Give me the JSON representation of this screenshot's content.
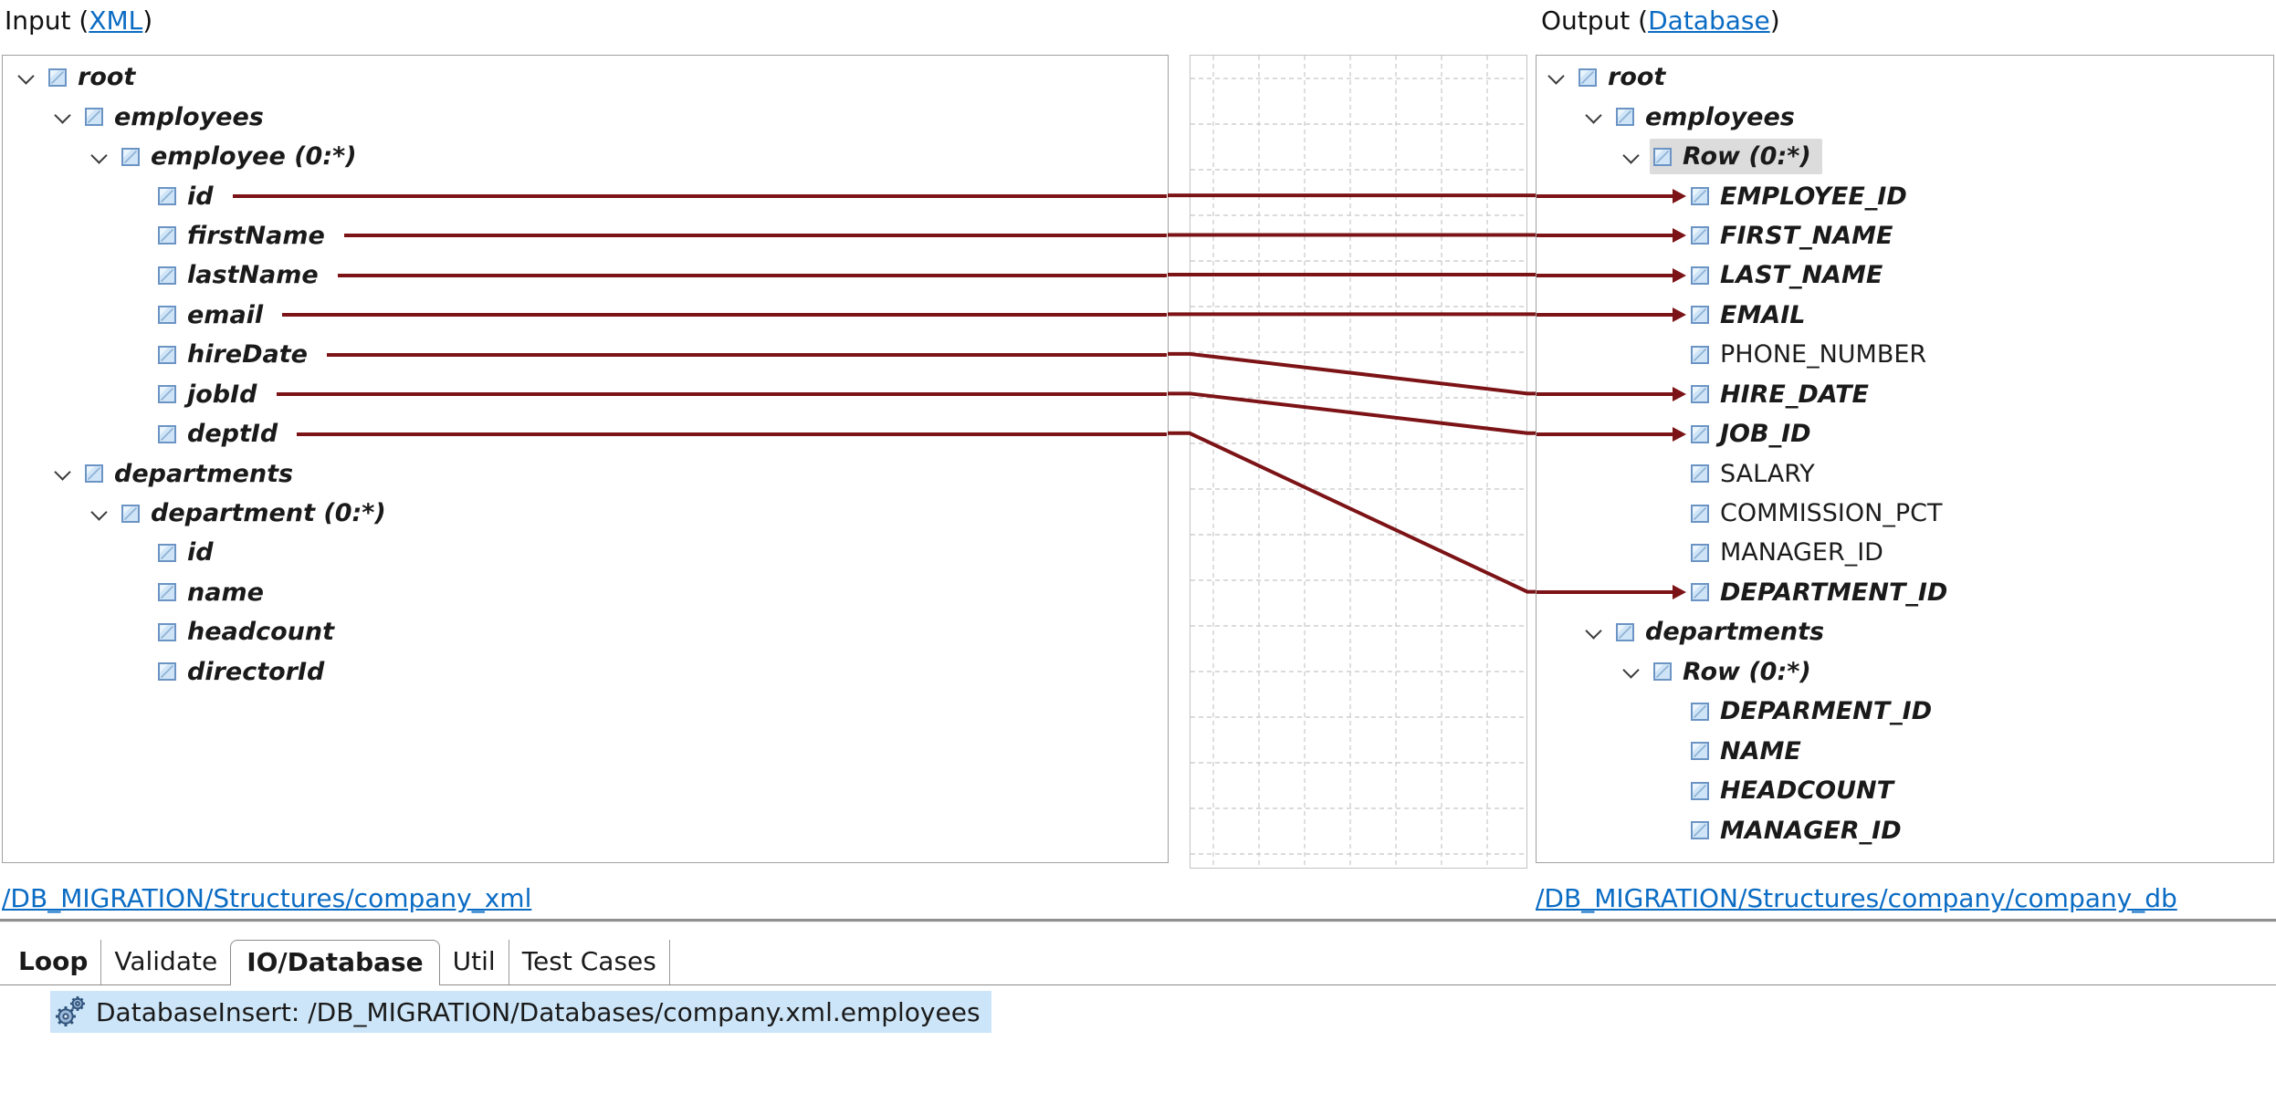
{
  "header": {
    "input_prefix": "Input (",
    "input_link": "XML",
    "output_prefix": "Output (",
    "output_link": "Database",
    "paren_close": ")"
  },
  "input_tree": {
    "items": [
      {
        "label": "root",
        "level": 0,
        "expandable": true,
        "emphasis": true
      },
      {
        "label": "employees",
        "level": 1,
        "expandable": true,
        "emphasis": true
      },
      {
        "label": "employee (0:*)",
        "level": 2,
        "expandable": true,
        "emphasis": true
      },
      {
        "label": "id",
        "level": 3,
        "mapped": true,
        "emphasis": true
      },
      {
        "label": "firstName",
        "level": 3,
        "mapped": true,
        "emphasis": true
      },
      {
        "label": "lastName",
        "level": 3,
        "mapped": true,
        "emphasis": true
      },
      {
        "label": "email",
        "level": 3,
        "mapped": true,
        "emphasis": true
      },
      {
        "label": "hireDate",
        "level": 3,
        "mapped": true,
        "emphasis": true
      },
      {
        "label": "jobId",
        "level": 3,
        "mapped": true,
        "emphasis": true
      },
      {
        "label": "deptId",
        "level": 3,
        "mapped": true,
        "emphasis": true
      },
      {
        "label": "departments",
        "level": 1,
        "expandable": true,
        "emphasis": true
      },
      {
        "label": "department (0:*)",
        "level": 2,
        "expandable": true,
        "emphasis": true
      },
      {
        "label": "id",
        "level": 3,
        "emphasis": true
      },
      {
        "label": "name",
        "level": 3,
        "emphasis": true
      },
      {
        "label": "headcount",
        "level": 3,
        "emphasis": true
      },
      {
        "label": "directorId",
        "level": 3,
        "emphasis": true
      }
    ]
  },
  "output_tree": {
    "items": [
      {
        "label": "root",
        "level": 0,
        "expandable": true,
        "emphasis": true
      },
      {
        "label": "employees",
        "level": 1,
        "expandable": true,
        "emphasis": true
      },
      {
        "label": "Row (0:*)",
        "level": 2,
        "expandable": true,
        "emphasis": true,
        "selected": true
      },
      {
        "label": "EMPLOYEE_ID",
        "level": 3,
        "mapped": true,
        "emphasis": true
      },
      {
        "label": "FIRST_NAME",
        "level": 3,
        "mapped": true,
        "emphasis": true
      },
      {
        "label": "LAST_NAME",
        "level": 3,
        "mapped": true,
        "emphasis": true
      },
      {
        "label": "EMAIL",
        "level": 3,
        "mapped": true,
        "emphasis": true
      },
      {
        "label": "PHONE_NUMBER",
        "level": 3,
        "emphasis": false
      },
      {
        "label": "HIRE_DATE",
        "level": 3,
        "mapped": true,
        "emphasis": true
      },
      {
        "label": "JOB_ID",
        "level": 3,
        "mapped": true,
        "emphasis": true
      },
      {
        "label": "SALARY",
        "level": 3,
        "emphasis": false
      },
      {
        "label": "COMMISSION_PCT",
        "level": 3,
        "emphasis": false
      },
      {
        "label": "MANAGER_ID",
        "level": 3,
        "emphasis": false
      },
      {
        "label": "DEPARTMENT_ID",
        "level": 3,
        "mapped": true,
        "emphasis": true
      },
      {
        "label": "departments",
        "level": 1,
        "expandable": true,
        "emphasis": true
      },
      {
        "label": "Row (0:*)",
        "level": 2,
        "expandable": true,
        "emphasis": true
      },
      {
        "label": "DEPARMENT_ID",
        "level": 3,
        "emphasis": true
      },
      {
        "label": "NAME",
        "level": 3,
        "emphasis": true
      },
      {
        "label": "HEADCOUNT",
        "level": 3,
        "emphasis": true
      },
      {
        "label": "MANAGER_ID",
        "level": 3,
        "emphasis": true
      }
    ]
  },
  "mappings": [
    {
      "source": "id",
      "source_row": 3,
      "target": "EMPLOYEE_ID",
      "target_row": 3
    },
    {
      "source": "firstName",
      "source_row": 4,
      "target": "FIRST_NAME",
      "target_row": 4
    },
    {
      "source": "lastName",
      "source_row": 5,
      "target": "LAST_NAME",
      "target_row": 5
    },
    {
      "source": "email",
      "source_row": 6,
      "target": "EMAIL",
      "target_row": 6
    },
    {
      "source": "hireDate",
      "source_row": 7,
      "target": "HIRE_DATE",
      "target_row": 8
    },
    {
      "source": "jobId",
      "source_row": 8,
      "target": "JOB_ID",
      "target_row": 9
    },
    {
      "source": "deptId",
      "source_row": 9,
      "target": "DEPARTMENT_ID",
      "target_row": 13
    }
  ],
  "footer_links": {
    "input_path": "/DB_MIGRATION/Structures/company_xml",
    "output_path": "/DB_MIGRATION/Structures/company/company_db"
  },
  "tabs": [
    {
      "label": "Loop",
      "bold": true,
      "active": false
    },
    {
      "label": "Validate",
      "bold": false,
      "active": false
    },
    {
      "label": "IO/Database",
      "bold": true,
      "active": true
    },
    {
      "label": "Util",
      "bold": false,
      "active": false
    },
    {
      "label": "Test Cases",
      "bold": false,
      "active": false
    }
  ],
  "statement": {
    "icon": "gears-icon",
    "text": "DatabaseInsert: /DB_MIGRATION/Databases/company.xml.employees"
  },
  "colors": {
    "mapping_line": "#7c1316",
    "link_blue": "#0b6cc4",
    "selection_gray": "#dcdcdc",
    "statement_highlight": "#cde5f8",
    "grid_line": "#cfcfcf"
  }
}
